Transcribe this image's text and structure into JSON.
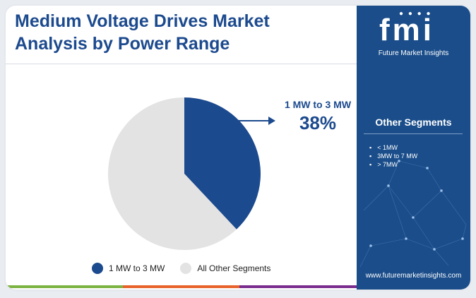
{
  "title": {
    "line1": "Medium Voltage Drives Market",
    "line2": "Analysis by Power Range"
  },
  "chart_data": {
    "type": "pie",
    "title": "Medium Voltage Drives Market Analysis by Power Range",
    "slices": [
      {
        "label": "1 MW to 3 MW",
        "value": 38,
        "color": "#1c4a8e"
      },
      {
        "label": "All Other Segments",
        "value": 62,
        "color": "#e3e3e3"
      }
    ],
    "callout": {
      "label": "1 MW to 3 MW",
      "value_text": "38%"
    },
    "legend_position": "bottom"
  },
  "legend": [
    {
      "label": "1 MW to 3 MW",
      "color": "#1c4a8e"
    },
    {
      "label": "All Other Segments",
      "color": "#e3e3e3"
    }
  ],
  "sidebar": {
    "logo_text": "fmi",
    "logo_subtitle": "Future Market Insights",
    "other_segments_title": "Other Segments",
    "other_segments": [
      "< 1MW",
      "3MW to 7 MW",
      "> 7MW"
    ],
    "website": "www.futuremarketinsights.com"
  },
  "colors": {
    "brand_blue": "#1c4a8e",
    "sidebar_blue": "#1a4d8a",
    "bottom_bar": [
      "#7cb342",
      "#e8632b",
      "#7b2d8e"
    ]
  },
  "icons": [
    "arrow-right-icon"
  ]
}
